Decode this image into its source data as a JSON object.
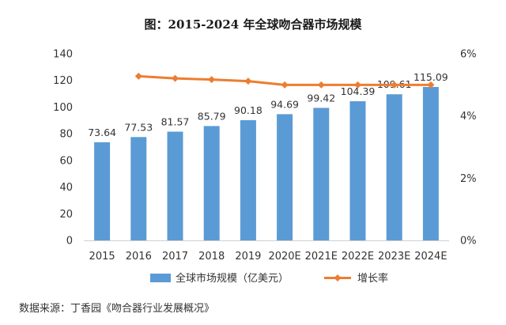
{
  "chart_data": {
    "type": "bar",
    "title": "图：2015-2024 年全球吻合器市场规模",
    "categories": [
      "2015",
      "2016",
      "2017",
      "2018",
      "2019",
      "2020E",
      "2021E",
      "2022E",
      "2023E",
      "2024E"
    ],
    "series": [
      {
        "name": "全球市场规模（亿美元）",
        "type": "bar",
        "axis": "left",
        "color": "#5B9BD5",
        "values": [
          73.64,
          77.53,
          81.57,
          85.79,
          90.18,
          94.69,
          99.42,
          104.39,
          109.61,
          115.09
        ],
        "labels": [
          "73.64",
          "77.53",
          "81.57",
          "85.79",
          "90.18",
          "94.69",
          "99.42",
          "104.39",
          "109.61",
          "115.09"
        ]
      },
      {
        "name": "增长率",
        "type": "line",
        "axis": "right",
        "color": "#ED7D31",
        "marker": "diamond",
        "values": [
          null,
          5.28,
          5.21,
          5.17,
          5.12,
          5.0,
          5.0,
          5.0,
          5.0,
          5.0
        ]
      }
    ],
    "y_left": {
      "min": 0,
      "max": 140,
      "ticks": [
        "0",
        "20",
        "40",
        "60",
        "80",
        "100",
        "120",
        "140"
      ]
    },
    "y_right": {
      "min": 0,
      "max": 6,
      "ticks": [
        "0%",
        "2%",
        "4%",
        "6%"
      ]
    },
    "grid": false,
    "legend": "bottom"
  },
  "source_note": "数据来源：丁香园《吻合器行业发展概况》"
}
